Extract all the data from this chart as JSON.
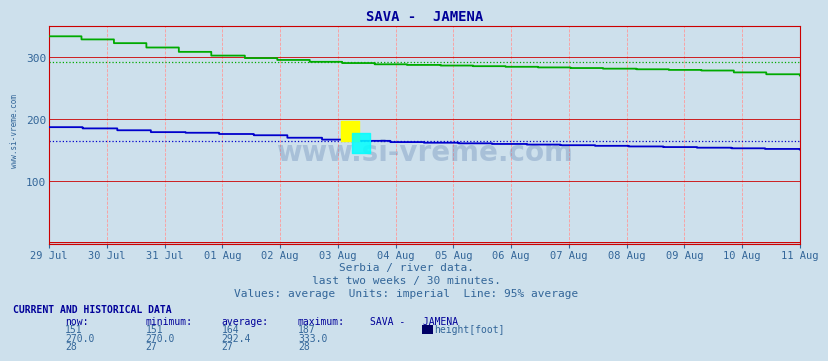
{
  "title": "SAVA -  JAMENA",
  "subtitle1": "Serbia / river data.",
  "subtitle2": "last two weeks / 30 minutes.",
  "subtitle3": "Values: average  Units: imperial  Line: 95% average",
  "xlabel_dates": [
    "29 Jul",
    "30 Jul",
    "31 Jul",
    "01 Aug",
    "02 Aug",
    "03 Aug",
    "04 Aug",
    "05 Aug",
    "06 Aug",
    "07 Aug",
    "08 Aug",
    "09 Aug",
    "10 Aug",
    "11 Aug"
  ],
  "ylim": [
    0,
    350
  ],
  "yticks": [
    100,
    200,
    300
  ],
  "bg_color": "#cde0ec",
  "fig_bg_color": "#cde0ec",
  "text_color": "#336699",
  "title_color": "#000099",
  "watermark": "www.si-vreme.com",
  "now_val": 151,
  "min_val": 151,
  "avg_val": 164,
  "max_val": 187,
  "now_val2": "270.0",
  "min_val2": "270.0",
  "avg_val2": "292.4",
  "max_val2": "333.0",
  "now_val3": 28,
  "min_val3": 27,
  "avg_val3": 27,
  "max_val3": 28,
  "legend_label": "height[foot]",
  "legend_color": "#000066",
  "dotted_line_blue": 164,
  "dotted_line_green": 292.4,
  "n_points": 672,
  "blue_color": "#0000cc",
  "green_color": "#00aa00",
  "red_color": "#cc0000",
  "vgrid_color": "#ff9999",
  "hgrid_color": "#cc0000",
  "spine_color": "#cc0000"
}
